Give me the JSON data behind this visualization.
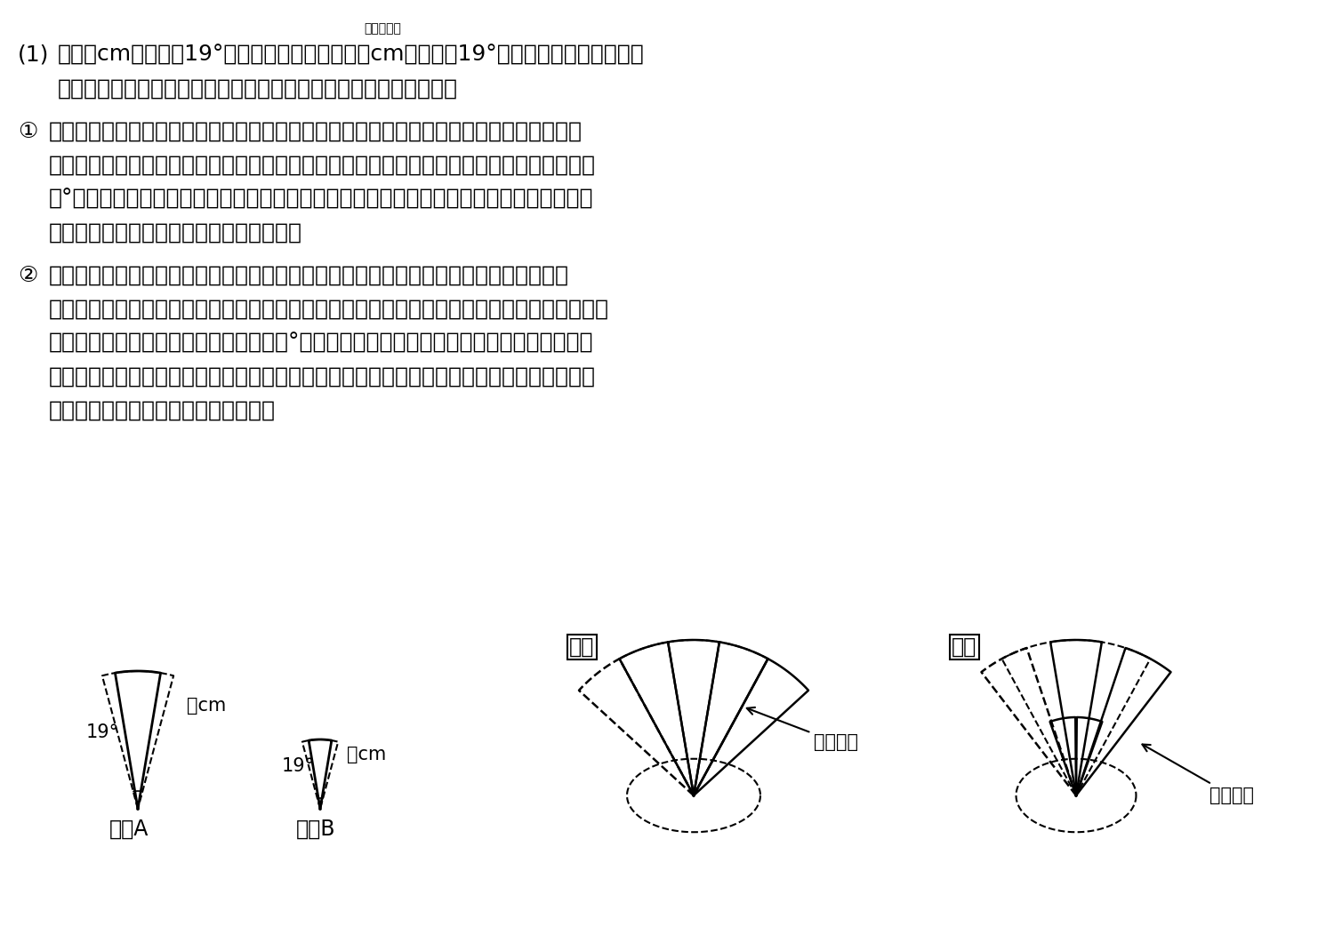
{
  "bg_color": "#ffffff",
  "text_color": "#000000",
  "title_furigana": "おうぎがた",
  "problem_number": "(1)",
  "line1": "半径６cm，中心角19°の扇形Ａの紙と，半径３cm，中心角19°の扇形Ｂの紙がたくさん",
  "line2": "あります。扇形の中心角とは，２本の半径がつくる角のことです。",
  "sub1_marker": "①",
  "sub1_line1": "扇形Ａの紙だけを図１のようにはり合わせて円を作ります。このとき，最後にはる扇形の",
  "sub1_line2": "紙は，１枚目の扇形の紙にはり合わせます。ただし，のりしろ部分の扇形の中心角はどれも",
  "sub1_line3": "３°以上です。のりしろ部分の面積の合計がいちばん小さくなるようにはり合わせたとき，",
  "sub1_line4": "のりしろ部分の面積の合計を求めなさい。",
  "sub2_marker": "②",
  "sub2_line1": "扇形Ａ，Ｂの紙を図２のように扇形Ａと扇形Ｂが必ず交互になるように，平らにはり合",
  "sub2_line2": "わせます。このとき，最後にはる扇形の紙は，１枚目の扇形の紙にはり合わせます。ただし，",
  "sub2_line3": "のりしろ部分の扇形の中心角はどれも３°以上です。また，扇形の紙が３枚以上重なる部分",
  "sub2_line4": "はありません。のりしろ部分の面積の合計がいちばん小さくなるようにはり合わせたとき，",
  "sub2_line5": "できた図形の周の長さを求めなさい。",
  "label_A": "扇形A",
  "label_B": "扇形B",
  "label_fig1": "図１",
  "label_fig2": "図２",
  "label_nori1": "のりしろ",
  "label_nori2": "のりしろ",
  "label_6cm": "６cm",
  "label_3cm": "３cm",
  "label_19A": "19°",
  "label_19B": "19°"
}
